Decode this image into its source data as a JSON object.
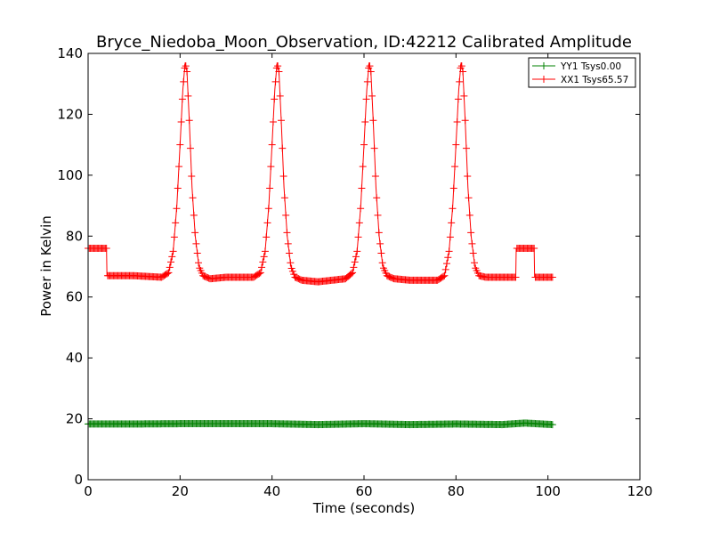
{
  "chart_data": {
    "type": "line",
    "title": "Bryce_Niedoba_Moon_Observation, ID:42212 Calibrated Amplitude",
    "xlabel": "Time (seconds)",
    "ylabel": "Power in Kelvin",
    "xlim": [
      0,
      120
    ],
    "ylim": [
      0,
      140
    ],
    "xticks": [
      "0",
      "20",
      "40",
      "60",
      "80",
      "100",
      "120"
    ],
    "yticks": [
      "0",
      "20",
      "40",
      "60",
      "80",
      "100",
      "120",
      "140"
    ],
    "grid": false,
    "legend_position": "top-right",
    "series": [
      {
        "name": "YY1 Tsys0.00",
        "color": "#008000",
        "marker": "+",
        "x": [
          0,
          10,
          20,
          30,
          40,
          50,
          60,
          70,
          80,
          90,
          95,
          101
        ],
        "y": [
          18.3,
          18.3,
          18.4,
          18.4,
          18.4,
          18.1,
          18.4,
          18.1,
          18.3,
          18.1,
          18.6,
          18.1
        ]
      },
      {
        "name": "XX1 Tsys65.57",
        "color": "#ff0000",
        "marker": "+",
        "x": [
          0,
          4,
          4.1,
          10,
          16,
          17.5,
          18.5,
          19.3,
          20,
          20.6,
          21.1,
          21.5,
          22,
          22.6,
          23.3,
          24.1,
          25,
          26.5,
          30,
          36,
          37.5,
          38.5,
          39.3,
          40,
          40.6,
          41.1,
          41.5,
          42,
          42.6,
          43.3,
          44.1,
          45,
          46.5,
          50,
          56,
          57.5,
          58.5,
          59.3,
          60,
          60.6,
          61.1,
          61.5,
          62,
          62.6,
          63.3,
          64.1,
          65,
          66.5,
          70,
          76,
          77.5,
          78.5,
          79.3,
          80,
          80.6,
          81.1,
          81.5,
          82,
          82.6,
          83.3,
          84.1,
          85,
          86.5,
          90,
          93,
          93.1,
          97,
          97.1,
          101
        ],
        "y": [
          76,
          76,
          67,
          67,
          66.5,
          68,
          75,
          90,
          110,
          128,
          137,
          134,
          118,
          96,
          80,
          70,
          67,
          66,
          66.5,
          66.5,
          68,
          75,
          90,
          110,
          128,
          137,
          134,
          118,
          96,
          80,
          70,
          66.5,
          65.5,
          65,
          66,
          68,
          75,
          90,
          110,
          128,
          137,
          134,
          118,
          96,
          80,
          70,
          67,
          66,
          65.5,
          65.5,
          67,
          75,
          90,
          110,
          128,
          137,
          134,
          118,
          96,
          80,
          70,
          67,
          66.5,
          66.5,
          66.5,
          76,
          76,
          66.5,
          66.5
        ]
      }
    ]
  }
}
